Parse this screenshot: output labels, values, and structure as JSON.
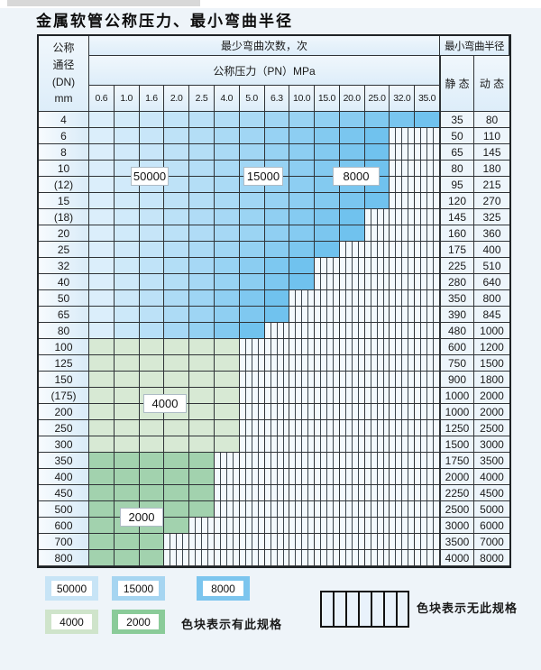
{
  "title": "金属软管公称压力、最小弯曲半径",
  "table": {
    "corner_lines": [
      "公称",
      "通径",
      "(DN)",
      "mm"
    ],
    "cycles_header": "最少弯曲次数，次",
    "pressure_header": "公称压力（PN）MPa",
    "pressure_columns": [
      "0.6",
      "1.0",
      "1.6",
      "2.0",
      "2.5",
      "4.0",
      "5.0",
      "6.3",
      "10.0",
      "15.0",
      "20.0",
      "25.0",
      "32.0",
      "35.0"
    ],
    "radius_header": "最小弯曲半径",
    "static_header": "静 态",
    "dynamic_header": "动 态",
    "rows": [
      {
        "dn": "4",
        "region": "blue",
        "colored": 14,
        "static": "35",
        "dynamic": "80"
      },
      {
        "dn": "6",
        "region": "blue",
        "colored": 12,
        "static": "50",
        "dynamic": "110"
      },
      {
        "dn": "8",
        "region": "blue",
        "colored": 12,
        "static": "65",
        "dynamic": "145"
      },
      {
        "dn": "10",
        "region": "blue",
        "colored": 12,
        "static": "80",
        "dynamic": "180"
      },
      {
        "dn": "(12)",
        "region": "blue",
        "colored": 12,
        "static": "95",
        "dynamic": "215"
      },
      {
        "dn": "15",
        "region": "blue",
        "colored": 12,
        "static": "120",
        "dynamic": "270"
      },
      {
        "dn": "(18)",
        "region": "blue",
        "colored": 11,
        "static": "145",
        "dynamic": "325"
      },
      {
        "dn": "20",
        "region": "blue",
        "colored": 11,
        "static": "160",
        "dynamic": "360"
      },
      {
        "dn": "25",
        "region": "blue",
        "colored": 10,
        "static": "175",
        "dynamic": "400"
      },
      {
        "dn": "32",
        "region": "blue",
        "colored": 9,
        "static": "225",
        "dynamic": "510"
      },
      {
        "dn": "40",
        "region": "blue",
        "colored": 9,
        "static": "280",
        "dynamic": "640"
      },
      {
        "dn": "50",
        "region": "blue",
        "colored": 8,
        "static": "350",
        "dynamic": "800"
      },
      {
        "dn": "65",
        "region": "blue",
        "colored": 8,
        "static": "390",
        "dynamic": "845"
      },
      {
        "dn": "80",
        "region": "blue",
        "colored": 7,
        "static": "480",
        "dynamic": "1000"
      },
      {
        "dn": "100",
        "region": "green-light",
        "colored": 6,
        "static": "600",
        "dynamic": "1200"
      },
      {
        "dn": "125",
        "region": "green-light",
        "colored": 6,
        "static": "750",
        "dynamic": "1500"
      },
      {
        "dn": "150",
        "region": "green-light",
        "colored": 6,
        "static": "900",
        "dynamic": "1800"
      },
      {
        "dn": "(175)",
        "region": "green-light",
        "colored": 6,
        "static": "1000",
        "dynamic": "2000"
      },
      {
        "dn": "200",
        "region": "green-light",
        "colored": 6,
        "static": "1000",
        "dynamic": "2000"
      },
      {
        "dn": "250",
        "region": "green-light",
        "colored": 6,
        "static": "1250",
        "dynamic": "2500"
      },
      {
        "dn": "300",
        "region": "green-light",
        "colored": 6,
        "static": "1500",
        "dynamic": "3000"
      },
      {
        "dn": "350",
        "region": "green-dark",
        "colored": 5,
        "static": "1750",
        "dynamic": "3500"
      },
      {
        "dn": "400",
        "region": "green-dark",
        "colored": 5,
        "static": "2000",
        "dynamic": "4000"
      },
      {
        "dn": "450",
        "region": "green-dark",
        "colored": 5,
        "static": "2250",
        "dynamic": "4500"
      },
      {
        "dn": "500",
        "region": "green-dark",
        "colored": 5,
        "static": "2500",
        "dynamic": "5000"
      },
      {
        "dn": "600",
        "region": "green-dark",
        "colored": 4,
        "static": "3000",
        "dynamic": "6000"
      },
      {
        "dn": "700",
        "region": "green-dark",
        "colored": 3,
        "static": "3500",
        "dynamic": "7000"
      },
      {
        "dn": "800",
        "region": "green-dark",
        "colored": 3,
        "static": "4000",
        "dynamic": "8000"
      }
    ],
    "cycle_labels": {
      "c50000": "50000",
      "c15000": "15000",
      "c8000": "8000",
      "c4000": "4000",
      "c2000": "2000"
    }
  },
  "legend": {
    "swatches": [
      {
        "label": "50000",
        "color": "#c7e4f6"
      },
      {
        "label": "15000",
        "color": "#a6d5f1"
      },
      {
        "label": "8000",
        "color": "#7cc5ee"
      },
      {
        "label": "4000",
        "color": "#cfe4cb"
      },
      {
        "label": "2000",
        "color": "#8acb99"
      }
    ],
    "has_spec_text": "色块表示有此规格",
    "no_spec_text": "色块表示无此规格"
  },
  "colors": {
    "blue_from": "#dbeefb",
    "blue_to": "#70c2ee",
    "green_light": "#d7e9d4",
    "green_dark": "#a2d2ae",
    "hatch_bg": "#f3f9fd",
    "hatch_line": "#3c464e"
  }
}
